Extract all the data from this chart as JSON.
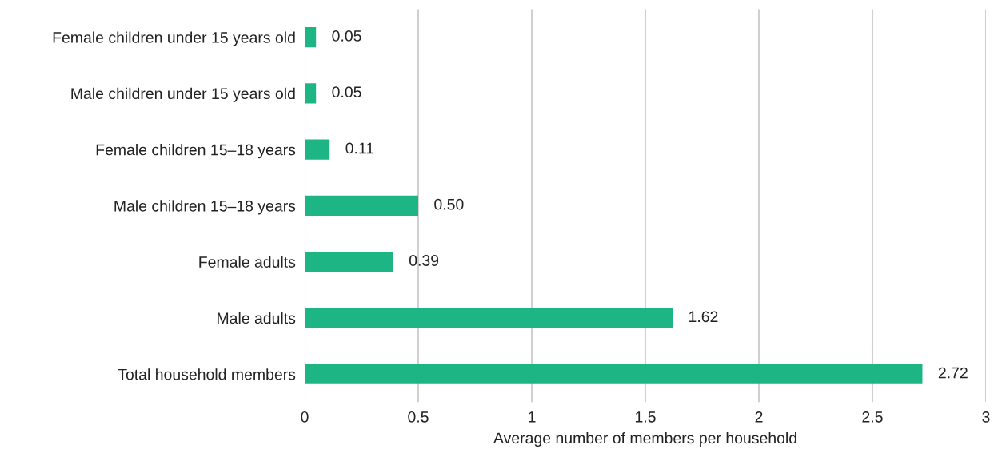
{
  "chart_data": {
    "type": "bar",
    "orientation": "horizontal",
    "xlabel": "Average number of members per household",
    "categories": [
      "Female children under 15 years old",
      "Male children under 15 years old",
      "Female children 15–18 years",
      "Male children 15–18 years",
      "Female adults",
      "Male adults",
      "Total household members"
    ],
    "values": [
      0.05,
      0.05,
      0.11,
      0.5,
      0.39,
      1.62,
      2.72
    ],
    "value_labels": [
      "0.05",
      "0.05",
      "0.11",
      "0.50",
      "0.39",
      "1.62",
      "2.72"
    ],
    "color": "#1db584",
    "xlim": [
      0,
      3
    ],
    "xticks": [
      0,
      0.5,
      1,
      1.5,
      2,
      2.5,
      3
    ],
    "grid": "x",
    "legend": false
  }
}
